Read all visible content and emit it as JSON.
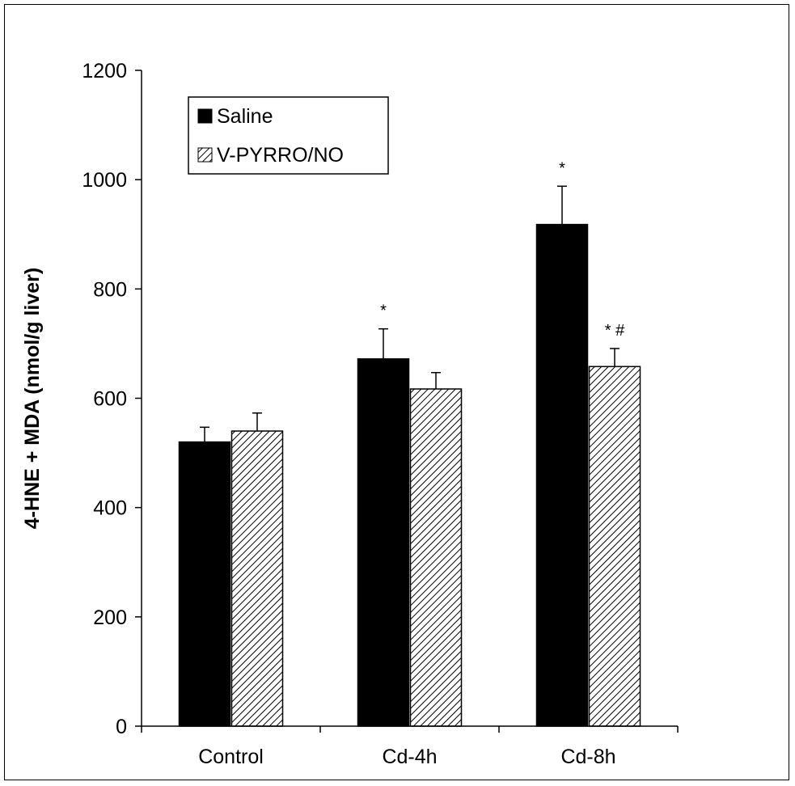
{
  "chart_data": {
    "type": "bar",
    "title": "",
    "xlabel": "",
    "ylabel": "4-HNE + MDA (nmol/g liver)",
    "ylim": [
      0,
      1200
    ],
    "yticks": [
      "0",
      "200",
      "400",
      "600",
      "800",
      "1000",
      "1200"
    ],
    "grid": false,
    "legend_position": "top-left",
    "categories": [
      "Control",
      "Cd-4h",
      "Cd-8h"
    ],
    "series": [
      {
        "name": "Saline",
        "values": [
          520,
          672,
          918
        ],
        "errors": [
          27,
          55,
          70
        ],
        "color": "#000000",
        "pattern": "solid"
      },
      {
        "name": "V-PYRRO/NO",
        "values": [
          540,
          617,
          658
        ],
        "errors": [
          33,
          30,
          33
        ],
        "color": "#ffffff",
        "pattern": "hatched"
      }
    ],
    "annotations": [
      {
        "category": "Cd-4h",
        "series": "Saline",
        "text": "*"
      },
      {
        "category": "Cd-8h",
        "series": "Saline",
        "text": "*"
      },
      {
        "category": "Cd-8h",
        "series": "V-PYRRO/NO",
        "text": "* #"
      }
    ]
  }
}
